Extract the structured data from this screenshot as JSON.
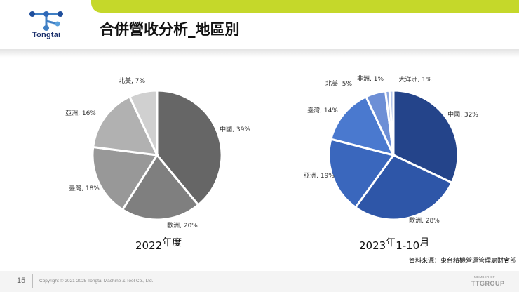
{
  "header": {
    "logo_text": "Tongtai",
    "title": "合併營收分析_地區別"
  },
  "chart_data": [
    {
      "type": "pie",
      "caption_main": "2022",
      "caption_sup": "年度",
      "slices": [
        {
          "label": "中國, 39%",
          "value": 39,
          "color": "#666666"
        },
        {
          "label": "歐洲, 20%",
          "value": 20,
          "color": "#7f7f7f"
        },
        {
          "label": "臺灣, 18%",
          "value": 18,
          "color": "#989898"
        },
        {
          "label": "亞洲, 16%",
          "value": 16,
          "color": "#b1b1b1"
        },
        {
          "label": "北美, 7%",
          "value": 7,
          "color": "#d0d0d0"
        }
      ]
    },
    {
      "type": "pie",
      "caption_main": "2023",
      "caption_sup": "年",
      "caption_mid": "1-10",
      "caption_sup2": "月",
      "slices": [
        {
          "label": "中國, 32%",
          "value": 32,
          "color": "#24448a"
        },
        {
          "label": "歐洲, 28%",
          "value": 28,
          "color": "#2e56a8"
        },
        {
          "label": "亞洲, 19%",
          "value": 19,
          "color": "#3a67bd"
        },
        {
          "label": "臺灣, 14%",
          "value": 14,
          "color": "#4a79cf"
        },
        {
          "label": "北美, 5%",
          "value": 5,
          "color": "#6d8fd6"
        },
        {
          "label": "非洲, 1%",
          "value": 1,
          "color": "#8fa9e0"
        },
        {
          "label": "大洋洲, 1%",
          "value": 1,
          "color": "#b3c4ea"
        }
      ]
    }
  ],
  "source_note": "資料來源：東台精機營運管理處財會部",
  "footer": {
    "page_number": "15",
    "copyright": "Copyright © 2021-2025 Tongtai Machine & Tool Co., Ltd.",
    "member_of": "MEMBER OF",
    "group_logo": "TTGROUP"
  }
}
